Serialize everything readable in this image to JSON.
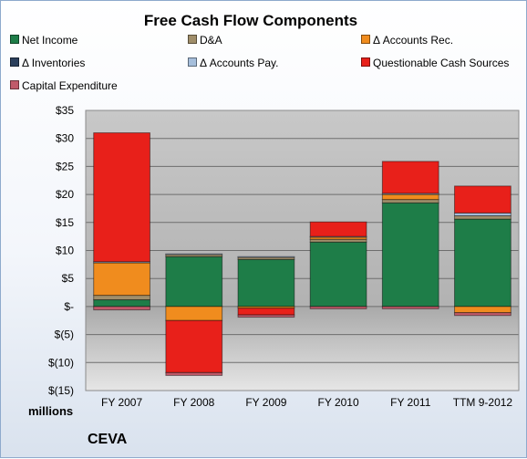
{
  "chart_data": {
    "type": "bar",
    "stacked": true,
    "title": "Free Cash Flow Components",
    "categories": [
      "FY 2007",
      "FY 2008",
      "FY 2009",
      "FY 2010",
      "FY 2011",
      "TTM 9-2012"
    ],
    "unit_label": "millions",
    "company": "CEVA",
    "y_ticks": [
      "$35",
      "$30",
      "$25",
      "$20",
      "$15",
      "$10",
      "$5",
      "$-",
      "$(5)",
      "$(10)",
      "$(15)"
    ],
    "ylim": [
      -15,
      35
    ],
    "grid": true,
    "legend_position": "top",
    "series": [
      {
        "name": "Net Income",
        "color": "#1e7d48",
        "values": [
          1.2,
          8.9,
          8.4,
          11.5,
          18.5,
          15.6
        ]
      },
      {
        "name": "D&A",
        "color": "#a08e6a",
        "values": [
          0.8,
          0.4,
          0.4,
          0.5,
          0.6,
          0.6
        ]
      },
      {
        "name": "Δ Accounts Rec.",
        "color": "#f08c1e",
        "values": [
          5.8,
          -2.5,
          -0.3,
          0.4,
          0.9,
          -1.1
        ]
      },
      {
        "name": "Δ Inventories",
        "color": "#2b3f5c",
        "values": [
          0,
          0,
          0,
          0,
          0,
          0
        ]
      },
      {
        "name": "Δ Accounts Pay.",
        "color": "#a6bfdc",
        "values": [
          0.2,
          0.1,
          0.1,
          0.1,
          0.2,
          0.5
        ]
      },
      {
        "name": "Questionable Cash Sources",
        "color": "#e8201a",
        "values": [
          23,
          -9.3,
          -1.2,
          2.6,
          5.7,
          4.8
        ]
      },
      {
        "name": "Capital Expenditure",
        "color": "#c05a6a",
        "values": [
          -0.6,
          -0.5,
          -0.4,
          -0.4,
          -0.4,
          -0.5
        ]
      }
    ]
  }
}
